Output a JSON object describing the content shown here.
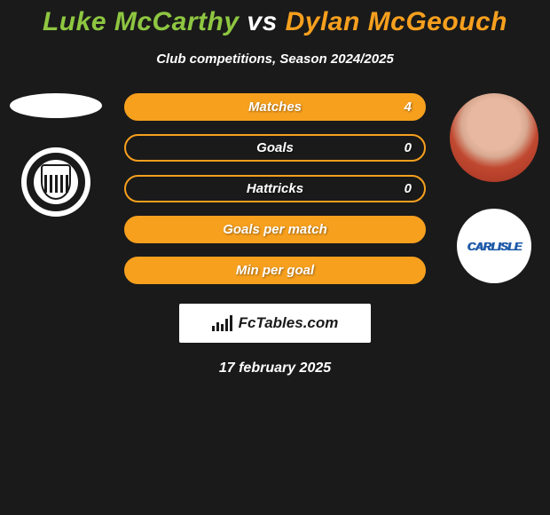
{
  "title": {
    "player1": "Luke McCarthy",
    "vs": "vs",
    "player2": "Dylan McGeouch"
  },
  "subtitle": "Club competitions, Season 2024/2025",
  "colors": {
    "player1": "#8ec641",
    "player2": "#f7a01e",
    "background": "#1a1a1a",
    "text": "#ffffff"
  },
  "left": {
    "player_name": "luke-mccarthy",
    "club_name": "grimsby-town"
  },
  "right": {
    "player_name": "dylan-mcgeouch",
    "club_name": "carlisle",
    "club_label": "CARLISLE"
  },
  "stats": [
    {
      "label": "Matches",
      "value": "4",
      "fill": "full"
    },
    {
      "label": "Goals",
      "value": "0",
      "fill": "empty"
    },
    {
      "label": "Hattricks",
      "value": "0",
      "fill": "empty"
    },
    {
      "label": "Goals per match",
      "value": "",
      "fill": "full"
    },
    {
      "label": "Min per goal",
      "value": "",
      "fill": "full"
    }
  ],
  "logo": {
    "text": "FcTables.com"
  },
  "date": "17 february 2025"
}
